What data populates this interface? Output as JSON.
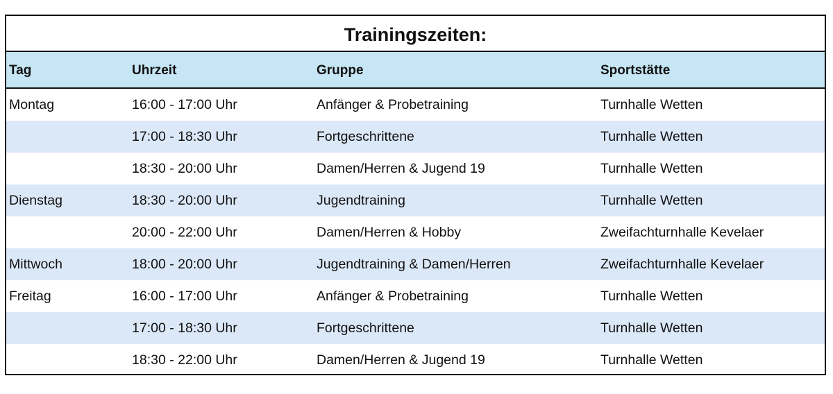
{
  "title": "Trainingszeiten:",
  "columns": [
    "Tag",
    "Uhrzeit",
    "Gruppe",
    "Sportstätte"
  ],
  "rows": [
    [
      "Montag",
      "16:00 - 17:00 Uhr",
      "Anfänger & Probetraining",
      "Turnhalle Wetten"
    ],
    [
      "",
      "17:00 - 18:30 Uhr",
      "Fortgeschrittene",
      "Turnhalle Wetten"
    ],
    [
      "",
      "18:30 - 20:00 Uhr",
      "Damen/Herren & Jugend 19",
      "Turnhalle Wetten"
    ],
    [
      "Dienstag",
      "18:30 - 20:00 Uhr",
      "Jugendtraining",
      "Turnhalle Wetten"
    ],
    [
      "",
      "20:00 - 22:00 Uhr",
      "Damen/Herren & Hobby",
      "Zweifachturnhalle Kevelaer"
    ],
    [
      "Mittwoch",
      "18:00 - 20:00 Uhr",
      "Jugendtraining & Damen/Herren",
      "Zweifachturnhalle Kevelaer"
    ],
    [
      "Freitag",
      "16:00 - 17:00 Uhr",
      "Anfänger & Probetraining",
      "Turnhalle Wetten"
    ],
    [
      "",
      "17:00 - 18:30 Uhr",
      "Fortgeschrittene",
      "Turnhalle Wetten"
    ],
    [
      "",
      "18:30 - 22:00 Uhr",
      "Damen/Herren & Jugend 19",
      "Turnhalle Wetten"
    ]
  ],
  "colors": {
    "header_bg": "#c6e6f5",
    "alt_row_bg": "#dbe8f7",
    "border": "#111111"
  }
}
